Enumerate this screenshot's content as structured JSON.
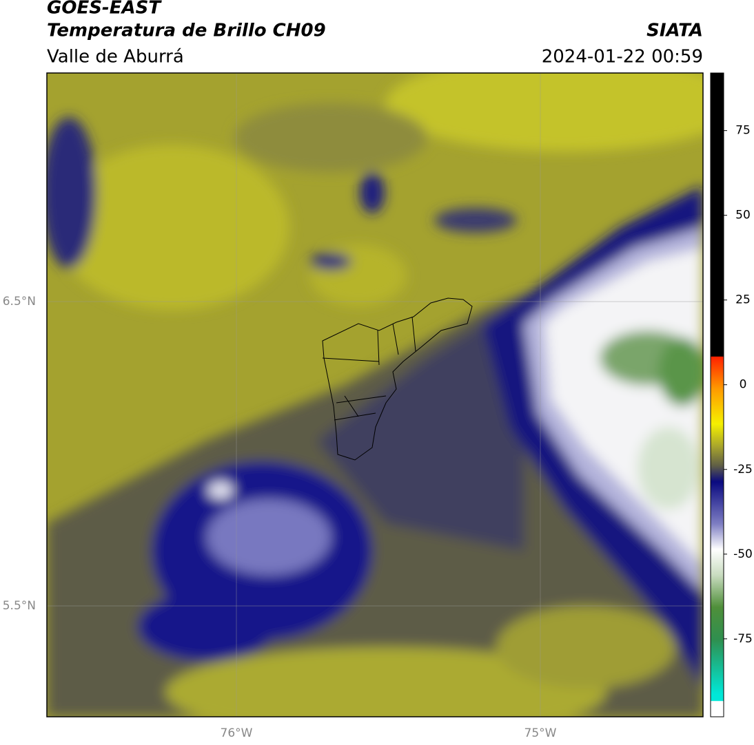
{
  "header": {
    "satellite": "GOES-EAST",
    "product": "Temperatura de Brillo CH09",
    "region": "Valle de Aburrá",
    "agency": "SIATA",
    "datetime": "2024-01-22 00:59"
  },
  "map": {
    "lat_labels": [
      "6.5°N",
      "5.5°N"
    ],
    "lon_labels": [
      "76°W",
      "75°W"
    ]
  },
  "colorbar": {
    "lim": [
      -98,
      92
    ],
    "ticks": [
      75,
      50,
      25,
      0,
      -25,
      -50,
      -75
    ]
  }
}
